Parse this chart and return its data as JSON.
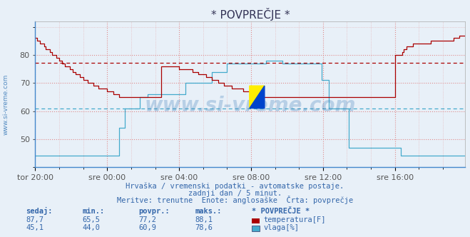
{
  "title": "* POVPREČJE *",
  "background_color": "#e8f0f8",
  "plot_bg_color": "#e8f0f8",
  "grid_color": "#e08080",
  "temp_color": "#aa0000",
  "hum_color": "#44aacc",
  "hline_red": 77.2,
  "hline_cyan": 60.9,
  "xlabel_ticks": [
    "tor 20:00",
    "sre 00:00",
    "sre 04:00",
    "sre 08:00",
    "sre 12:00",
    "sre 16:00"
  ],
  "ylim": [
    40,
    92
  ],
  "yticks": [
    50,
    60,
    70,
    80
  ],
  "xlim": [
    0,
    287
  ],
  "watermark": "www.si-vreme.com",
  "watermark_color": "#3a7ab8",
  "subtitle1": "Hrvaška / vremenski podatki - avtomatske postaje.",
  "subtitle2": "zadnji dan / 5 minut.",
  "subtitle3": "Meritve: trenutne  Enote: anglosaške  Črta: povprečje",
  "legend_title": "* POVPREČJE *",
  "table_headers": [
    "sedaj:",
    "min.:",
    "povpr.:",
    "maks.:"
  ],
  "row1": [
    "87,7",
    "65,5",
    "77,2",
    "88,1"
  ],
  "row2": [
    "45,1",
    "44,0",
    "60,9",
    "78,6"
  ],
  "row1_label": "temperatura[F]",
  "row2_label": "vlaga[%]",
  "label_color": "#3366aa",
  "tick_color": "#555555",
  "tick_label_size": 8,
  "title_fontsize": 11,
  "temp": [
    86,
    85,
    85,
    84,
    84,
    84,
    83,
    82,
    82,
    82,
    81,
    80,
    80,
    80,
    79,
    79,
    78,
    78,
    77,
    77,
    76,
    76,
    76,
    75,
    75,
    74,
    74,
    73,
    73,
    73,
    72,
    72,
    71,
    71,
    71,
    70,
    70,
    70,
    70,
    69,
    69,
    69,
    68,
    68,
    68,
    68,
    68,
    68,
    67,
    67,
    67,
    67,
    66,
    66,
    66,
    66,
    65,
    65,
    65,
    65,
    65,
    65,
    65,
    65,
    65,
    65,
    65,
    65,
    65,
    65,
    65,
    65,
    65,
    65,
    65,
    65,
    65,
    65,
    65,
    65,
    65,
    65,
    65,
    65,
    76,
    76,
    76,
    76,
    76,
    76,
    76,
    76,
    76,
    76,
    76,
    76,
    75,
    75,
    75,
    75,
    75,
    75,
    75,
    75,
    75,
    74,
    74,
    74,
    74,
    73,
    73,
    73,
    73,
    73,
    72,
    72,
    72,
    72,
    71,
    71,
    71,
    71,
    70,
    70,
    70,
    70,
    69,
    69,
    69,
    69,
    69,
    68,
    68,
    68,
    68,
    68,
    68,
    68,
    68,
    67,
    67,
    67,
    67,
    67,
    67,
    67,
    67,
    66,
    66,
    66,
    66,
    65,
    65,
    65,
    65,
    65,
    65,
    65,
    65,
    65,
    65,
    65,
    65,
    65,
    65,
    65,
    65,
    65,
    65,
    65,
    65,
    65,
    65,
    65,
    65,
    65,
    65,
    65,
    65,
    65,
    65,
    65,
    65,
    65,
    65,
    65,
    65,
    65,
    65,
    65,
    65,
    65,
    65,
    65,
    65,
    65,
    65,
    65,
    65,
    65,
    65,
    65,
    65,
    65,
    65,
    65,
    65,
    65,
    65,
    65,
    65,
    65,
    65,
    65,
    65,
    65,
    65,
    65,
    65,
    65,
    65,
    65,
    65,
    65,
    65,
    65,
    65,
    65,
    65,
    65,
    65,
    65,
    65,
    65,
    65,
    65,
    65,
    65,
    65,
    65,
    80,
    80,
    80,
    80,
    80,
    81,
    82,
    82,
    83,
    83,
    83,
    83,
    84,
    84,
    84,
    84,
    84,
    84,
    84,
    84,
    84,
    84,
    84,
    84,
    85,
    85,
    85,
    85,
    85,
    85,
    85,
    85,
    85,
    85,
    85,
    85,
    85,
    85,
    85,
    86,
    86,
    86,
    86,
    87,
    87,
    87,
    87,
    87
  ],
  "hum": [
    44,
    44,
    44,
    44,
    44,
    44,
    44,
    44,
    44,
    44,
    44,
    44,
    44,
    44,
    44,
    44,
    44,
    44,
    44,
    44,
    44,
    44,
    44,
    44,
    44,
    44,
    44,
    44,
    44,
    44,
    44,
    44,
    44,
    44,
    44,
    44,
    44,
    44,
    44,
    44,
    44,
    44,
    44,
    44,
    44,
    44,
    44,
    44,
    44,
    44,
    44,
    44,
    44,
    44,
    44,
    44,
    54,
    54,
    54,
    54,
    61,
    61,
    61,
    61,
    61,
    61,
    61,
    61,
    61,
    61,
    65,
    65,
    65,
    65,
    65,
    66,
    66,
    66,
    66,
    66,
    66,
    66,
    66,
    66,
    66,
    66,
    66,
    66,
    66,
    66,
    66,
    66,
    66,
    66,
    66,
    66,
    66,
    66,
    66,
    66,
    70,
    70,
    70,
    70,
    70,
    70,
    70,
    70,
    70,
    70,
    70,
    70,
    70,
    70,
    70,
    70,
    70,
    70,
    74,
    74,
    74,
    74,
    74,
    74,
    74,
    74,
    74,
    74,
    77,
    77,
    77,
    77,
    77,
    77,
    77,
    77,
    77,
    77,
    77,
    77,
    77,
    77,
    77,
    77,
    77,
    77,
    77,
    77,
    77,
    77,
    77,
    77,
    77,
    77,
    78,
    78,
    78,
    78,
    78,
    78,
    78,
    78,
    78,
    78,
    78,
    77,
    77,
    77,
    77,
    77,
    77,
    77,
    77,
    77,
    77,
    77,
    77,
    77,
    77,
    77,
    77,
    77,
    77,
    77,
    77,
    77,
    77,
    77,
    77,
    77,
    77,
    71,
    71,
    71,
    71,
    71,
    61,
    61,
    61,
    61,
    61,
    61,
    61,
    61,
    61,
    61,
    61,
    61,
    61,
    47,
    47,
    47,
    47,
    47,
    47,
    47,
    47,
    47,
    47,
    47,
    47,
    47,
    47,
    47,
    47,
    47,
    47,
    47,
    47,
    47,
    47,
    47,
    47,
    47,
    47,
    47,
    47,
    47,
    47,
    47,
    47,
    47,
    47,
    47,
    44,
    44,
    44,
    44,
    44,
    44,
    44,
    44,
    44,
    44,
    44,
    44,
    44,
    44,
    44,
    44,
    44,
    44,
    44,
    44,
    44,
    44,
    44,
    44,
    44,
    44,
    44,
    44,
    44,
    44,
    44,
    44,
    44,
    44,
    44,
    44,
    44,
    44,
    44,
    44,
    44,
    44,
    44,
    44
  ]
}
